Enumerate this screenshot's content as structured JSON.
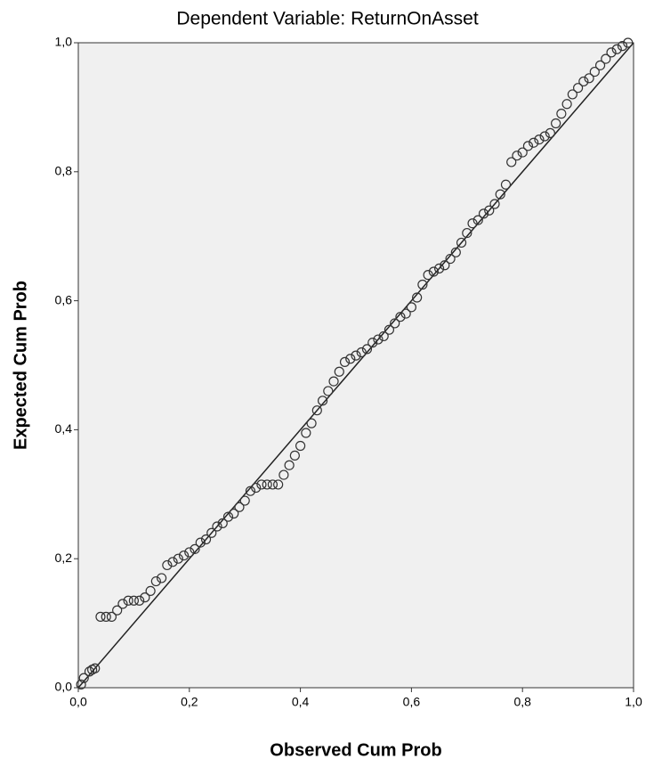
{
  "chart_data": {
    "type": "scatter",
    "title": "Dependent Variable: ReturnOnAsset",
    "x_label": "Observed Cum Prob",
    "y_label": "Expected Cum Prob",
    "x": [
      0.005,
      0.01,
      0.02,
      0.025,
      0.03,
      0.04,
      0.05,
      0.06,
      0.07,
      0.08,
      0.09,
      0.1,
      0.11,
      0.12,
      0.13,
      0.14,
      0.15,
      0.16,
      0.17,
      0.18,
      0.19,
      0.2,
      0.21,
      0.22,
      0.23,
      0.24,
      0.25,
      0.26,
      0.27,
      0.28,
      0.29,
      0.3,
      0.31,
      0.32,
      0.33,
      0.34,
      0.35,
      0.36,
      0.37,
      0.38,
      0.39,
      0.4,
      0.41,
      0.42,
      0.43,
      0.44,
      0.45,
      0.46,
      0.47,
      0.48,
      0.49,
      0.5,
      0.51,
      0.52,
      0.53,
      0.54,
      0.55,
      0.56,
      0.57,
      0.58,
      0.59,
      0.6,
      0.61,
      0.62,
      0.63,
      0.64,
      0.65,
      0.66,
      0.67,
      0.68,
      0.69,
      0.7,
      0.71,
      0.72,
      0.73,
      0.74,
      0.75,
      0.76,
      0.77,
      0.78,
      0.79,
      0.8,
      0.81,
      0.82,
      0.83,
      0.84,
      0.85,
      0.86,
      0.87,
      0.88,
      0.89,
      0.9,
      0.91,
      0.92,
      0.93,
      0.94,
      0.95,
      0.96,
      0.97,
      0.98,
      0.99
    ],
    "values": [
      0.005,
      0.015,
      0.025,
      0.028,
      0.03,
      0.11,
      0.11,
      0.11,
      0.12,
      0.13,
      0.135,
      0.135,
      0.135,
      0.14,
      0.15,
      0.165,
      0.17,
      0.19,
      0.195,
      0.2,
      0.205,
      0.21,
      0.215,
      0.225,
      0.23,
      0.24,
      0.25,
      0.255,
      0.265,
      0.27,
      0.28,
      0.29,
      0.305,
      0.31,
      0.315,
      0.315,
      0.315,
      0.315,
      0.33,
      0.345,
      0.36,
      0.375,
      0.395,
      0.41,
      0.43,
      0.445,
      0.46,
      0.475,
      0.49,
      0.505,
      0.51,
      0.515,
      0.52,
      0.525,
      0.535,
      0.54,
      0.545,
      0.555,
      0.565,
      0.575,
      0.58,
      0.59,
      0.605,
      0.625,
      0.64,
      0.645,
      0.65,
      0.655,
      0.665,
      0.675,
      0.69,
      0.705,
      0.72,
      0.725,
      0.735,
      0.74,
      0.75,
      0.765,
      0.78,
      0.815,
      0.825,
      0.83,
      0.84,
      0.845,
      0.85,
      0.855,
      0.86,
      0.875,
      0.89,
      0.905,
      0.92,
      0.93,
      0.94,
      0.945,
      0.955,
      0.965,
      0.975,
      0.985,
      0.99,
      0.995,
      1.0
    ],
    "xlim": [
      0,
      1
    ],
    "ylim": [
      0,
      1
    ],
    "xticks": [
      {
        "value": 0,
        "label": "0,0"
      },
      {
        "value": 0.2,
        "label": "0,2"
      },
      {
        "value": 0.4,
        "label": "0,4"
      },
      {
        "value": 0.6,
        "label": "0,6"
      },
      {
        "value": 0.8,
        "label": "0,8"
      },
      {
        "value": 1,
        "label": "1,0"
      }
    ],
    "yticks": [
      {
        "value": 0,
        "label": "0,0"
      },
      {
        "value": 0.2,
        "label": "0,2"
      },
      {
        "value": 0.4,
        "label": "0,4"
      },
      {
        "value": 0.6,
        "label": "0,6"
      },
      {
        "value": 0.8,
        "label": "0,8"
      },
      {
        "value": 1,
        "label": "1,0"
      }
    ],
    "color": "#333333"
  }
}
